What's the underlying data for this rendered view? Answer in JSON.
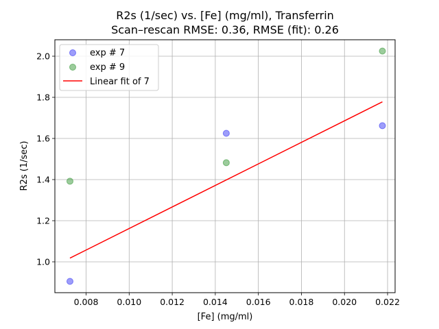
{
  "chart_data": {
    "type": "scatter",
    "title": "R2s (1/sec) vs. [Fe] (mg/ml), Transferrin",
    "subtitle": "Scan–rescan RMSE: 0.36, RMSE (fit): 0.26",
    "xlabel": "[Fe] (mg/ml)",
    "ylabel": "R2s (1/sec)",
    "xlim": [
      0.00655,
      0.02235
    ],
    "ylim": [
      0.85,
      2.08
    ],
    "xticks": [
      0.008,
      0.01,
      0.012,
      0.014,
      0.016,
      0.018,
      0.02,
      0.022
    ],
    "xtick_labels": [
      "0.008",
      "0.010",
      "0.012",
      "0.014",
      "0.016",
      "0.018",
      "0.020",
      "0.022"
    ],
    "yticks": [
      1.0,
      1.2,
      1.4,
      1.6,
      1.8,
      2.0
    ],
    "ytick_labels": [
      "1.0",
      "1.2",
      "1.4",
      "1.6",
      "1.8",
      "2.0"
    ],
    "grid": true,
    "legend_position": "top-left",
    "series": [
      {
        "name": "exp # 7",
        "kind": "scatter",
        "color": "#3b3bf5",
        "x": [
          0.00725,
          0.01451,
          0.02176
        ],
        "y": [
          0.905,
          1.625,
          1.662
        ]
      },
      {
        "name": "exp # 9",
        "kind": "scatter",
        "color": "#3a9a3a",
        "x": [
          0.00725,
          0.01451,
          0.02176
        ],
        "y": [
          1.392,
          1.482,
          2.025
        ]
      },
      {
        "name": "Linear fit of 7",
        "kind": "line",
        "color": "#ff0000",
        "x": [
          0.00725,
          0.02176
        ],
        "y": [
          1.018,
          1.778
        ]
      }
    ]
  }
}
